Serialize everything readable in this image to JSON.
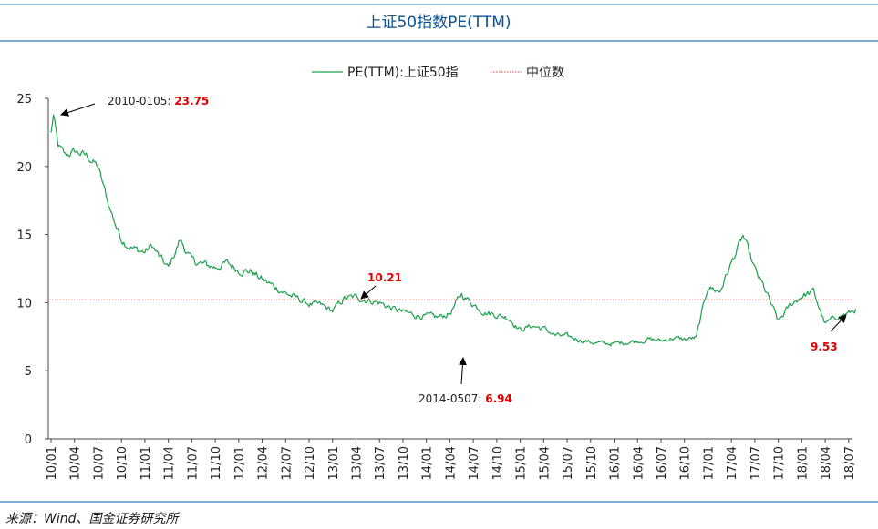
{
  "colors": {
    "series": "#1aa04a",
    "median": "#e06666",
    "rule": "#2a7fb8",
    "annotation_value": "#e00000",
    "title": "#0b5394"
  },
  "chart_data": {
    "type": "line",
    "title": "上证50指数PE(TTM)",
    "xlabel": "",
    "ylabel": "",
    "ylim": [
      0,
      25
    ],
    "yticks": [
      "0",
      "5",
      "10",
      "15",
      "20",
      "25"
    ],
    "xticks": [
      "10/01",
      "10/04",
      "10/07",
      "10/10",
      "11/01",
      "11/04",
      "11/07",
      "11/10",
      "12/01",
      "12/04",
      "12/07",
      "12/10",
      "13/01",
      "13/04",
      "13/07",
      "13/10",
      "14/01",
      "14/04",
      "14/07",
      "14/10",
      "15/01",
      "15/04",
      "15/07",
      "15/10",
      "16/01",
      "16/04",
      "16/07",
      "16/10",
      "17/01",
      "17/04",
      "17/07",
      "17/10",
      "18/01",
      "18/04",
      "18/07"
    ],
    "grid": false,
    "legend": "top-center",
    "series": [
      {
        "name": "PE(TTM):上证50指",
        "style": "solid",
        "x": [
          0,
          0.1,
          0.3,
          0.6,
          1,
          1.5,
          2,
          2.4,
          2.8,
          3,
          3.3,
          3.6,
          4,
          4.3,
          4.6,
          5,
          5.5,
          6,
          6.5,
          7,
          7.5,
          8,
          8.5,
          9,
          9.5,
          10,
          10.5,
          11,
          11.5,
          12,
          12.5,
          13,
          13.5,
          14,
          14.5,
          15,
          15.5,
          16,
          16.5,
          17,
          17.5,
          18,
          18.5,
          19,
          19.5,
          20,
          20.5,
          21,
          21.5,
          22,
          22.5,
          23,
          23.5,
          24,
          24.5,
          25,
          25.5,
          26,
          26.5,
          27,
          27.5,
          28,
          28.5,
          29,
          29.5,
          30,
          30.5,
          31,
          31.5,
          32,
          32.5,
          33,
          33.5,
          34,
          34.3
        ],
        "values": [
          22.5,
          23.75,
          21.5,
          20.8,
          21.1,
          20.8,
          20,
          17.5,
          15.5,
          14.7,
          14.2,
          13.9,
          13.7,
          14.2,
          13.4,
          12.5,
          14.6,
          13.1,
          12.8,
          12.6,
          12.9,
          12.4,
          12.3,
          11.7,
          11.2,
          10.7,
          10.3,
          9.9,
          9.8,
          9.4,
          10.3,
          10.4,
          10.2,
          10,
          9.6,
          9.3,
          9.1,
          9,
          8.9,
          9.2,
          10.6,
          9.9,
          9.3,
          9.1,
          8.9,
          8,
          8.3,
          8.1,
          7.6,
          7.5,
          7.3,
          7.1,
          7.0,
          7.0,
          7.1,
          7.2,
          7.3,
          7.2,
          7.4,
          7.3,
          7.4,
          11.2,
          10.8,
          12.9,
          14.9,
          12.4,
          10.7,
          8.6,
          9.8,
          10.5,
          10.8,
          8.4,
          9.0,
          9.2,
          9.53
        ]
      },
      {
        "name": "中位数",
        "style": "dotted",
        "value": 10.21
      }
    ],
    "annotations": [
      {
        "date": "2010-0105: ",
        "value": "23.75"
      },
      {
        "date": "",
        "value": "10.21"
      },
      {
        "date": "2014-0507: ",
        "value": "6.94"
      },
      {
        "date": "",
        "value": "9.53"
      }
    ]
  },
  "source": "来源：Wind、国金证券研究所"
}
